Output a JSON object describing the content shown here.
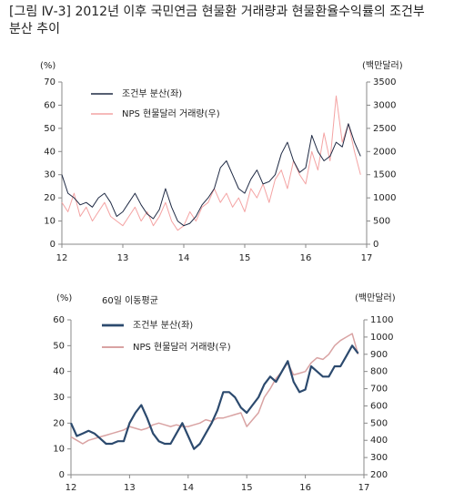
{
  "chart_data": [
    {
      "type": "line",
      "title": "[그림 Ⅳ-3] 2012년 이후 국민연금 현물환 거래량과 현물환율수익률의 조건부 분산 추이",
      "y_label": "(%)",
      "y2_label": "(백만달러)",
      "x": [
        12.0,
        12.1,
        12.2,
        12.3,
        12.4,
        12.5,
        12.6,
        12.7,
        12.8,
        12.9,
        13.0,
        13.1,
        13.2,
        13.3,
        13.4,
        13.5,
        13.6,
        13.7,
        13.8,
        13.9,
        14.0,
        14.1,
        14.2,
        14.3,
        14.4,
        14.5,
        14.6,
        14.7,
        14.8,
        14.9,
        15.0,
        15.1,
        15.2,
        15.3,
        15.4,
        15.5,
        15.6,
        15.7,
        15.8,
        15.9,
        16.0,
        16.1,
        16.2,
        16.3,
        16.4,
        16.5,
        16.6,
        16.7,
        16.8,
        16.9
      ],
      "xlim": [
        12,
        17
      ],
      "xticks": [
        12,
        13,
        14,
        15,
        16,
        17
      ],
      "ylim": [
        0,
        70
      ],
      "yticks": [
        0,
        10,
        20,
        30,
        40,
        50,
        60,
        70
      ],
      "y2lim": [
        0,
        3500
      ],
      "y2ticks": [
        0,
        500,
        1000,
        1500,
        2000,
        2500,
        3000,
        3500
      ],
      "grid": false,
      "legend": "upper left",
      "series": [
        {
          "name": "NPS 현물달러 거래량(우)",
          "color": "#f4a3a3",
          "axis": "y2",
          "width": 1,
          "values": [
            900,
            700,
            1100,
            600,
            800,
            500,
            700,
            900,
            600,
            500,
            400,
            600,
            800,
            500,
            700,
            400,
            600,
            900,
            500,
            300,
            400,
            700,
            500,
            800,
            900,
            1200,
            900,
            1100,
            800,
            1000,
            700,
            1200,
            1000,
            1300,
            900,
            1400,
            1600,
            1200,
            1800,
            1500,
            1300,
            2000,
            1600,
            2400,
            1800,
            3200,
            2200,
            2600,
            2000,
            1500
          ]
        },
        {
          "name": "조건부 분산(좌)",
          "color": "#1f2a44",
          "width": 1,
          "values": [
            30,
            22,
            20,
            17,
            18,
            16,
            20,
            22,
            18,
            12,
            14,
            18,
            22,
            17,
            13,
            11,
            15,
            24,
            16,
            10,
            8,
            9,
            12,
            17,
            20,
            24,
            33,
            36,
            30,
            24,
            22,
            28,
            32,
            26,
            27,
            30,
            39,
            44,
            36,
            31,
            33,
            47,
            40,
            36,
            38,
            44,
            42,
            52,
            44,
            38
          ]
        }
      ]
    },
    {
      "type": "line",
      "annotation": "60일 이동평균",
      "y_label": "(%)",
      "y2_label": "(백만달러)",
      "x": [
        12.0,
        12.1,
        12.2,
        12.3,
        12.4,
        12.5,
        12.6,
        12.7,
        12.8,
        12.9,
        13.0,
        13.1,
        13.2,
        13.3,
        13.4,
        13.5,
        13.6,
        13.7,
        13.8,
        13.9,
        14.0,
        14.1,
        14.2,
        14.3,
        14.4,
        14.5,
        14.6,
        14.7,
        14.8,
        14.9,
        15.0,
        15.1,
        15.2,
        15.3,
        15.4,
        15.5,
        15.6,
        15.7,
        15.8,
        15.9,
        16.0,
        16.1,
        16.2,
        16.3,
        16.4,
        16.5,
        16.6,
        16.7,
        16.8,
        16.9
      ],
      "xlim": [
        12,
        17
      ],
      "xticks": [
        12,
        13,
        14,
        15,
        16,
        17
      ],
      "ylim": [
        0,
        60
      ],
      "yticks": [
        0,
        10,
        20,
        30,
        40,
        50,
        60
      ],
      "y2lim": [
        200,
        1100
      ],
      "y2ticks": [
        200,
        300,
        400,
        500,
        600,
        700,
        800,
        900,
        1000,
        1100
      ],
      "grid": false,
      "legend": "upper left",
      "series": [
        {
          "name": "NPS 현물달러 거래량(우)",
          "color": "#d9a3a3",
          "axis": "y2",
          "width": 1.5,
          "values": [
            420,
            400,
            380,
            400,
            410,
            420,
            430,
            440,
            450,
            460,
            480,
            470,
            460,
            470,
            490,
            500,
            490,
            480,
            490,
            480,
            480,
            490,
            500,
            520,
            510,
            530,
            530,
            540,
            550,
            560,
            480,
            520,
            560,
            650,
            700,
            760,
            800,
            850,
            780,
            790,
            800,
            850,
            880,
            870,
            900,
            950,
            980,
            1000,
            1020,
            900
          ]
        },
        {
          "name": "조건부 분산(좌)",
          "color": "#2c4a6e",
          "width": 2.2,
          "values": [
            20,
            15,
            16,
            17,
            16,
            14,
            12,
            12,
            13,
            13,
            20,
            24,
            27,
            22,
            16,
            13,
            12,
            12,
            16,
            20,
            15,
            10,
            12,
            16,
            20,
            25,
            32,
            32,
            30,
            26,
            24,
            27,
            30,
            35,
            38,
            36,
            40,
            44,
            36,
            32,
            33,
            42,
            40,
            38,
            38,
            42,
            42,
            46,
            50,
            47
          ]
        }
      ]
    }
  ]
}
